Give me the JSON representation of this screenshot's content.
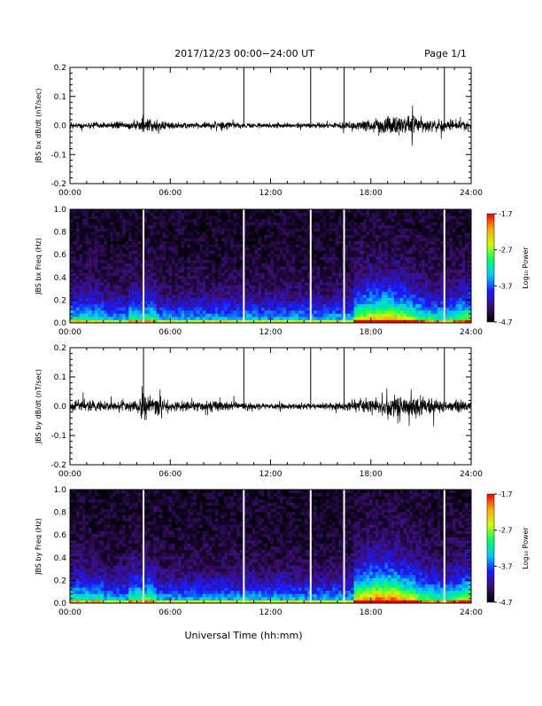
{
  "header": {
    "date_range": "2017/12/23  00:00−24:00 UT",
    "page": "Page 1/1"
  },
  "footer": {
    "xlabel": "Universal Time (hh:mm)"
  },
  "colorbar": {
    "label": "Log₁₀ Power",
    "ticks": [
      "-1.7",
      "-2.7",
      "-3.7",
      "-4.7"
    ],
    "range": [
      -4.7,
      -1.7
    ],
    "colormap": [
      "#000000",
      "#3b0f70",
      "#1a1aff",
      "#00c8ff",
      "#00ff66",
      "#ccff00",
      "#ffaa00",
      "#ff0000"
    ]
  },
  "chart_data": [
    {
      "type": "line",
      "ylabel": "JBS bx dB/dt (nT/sec)",
      "xticks": [
        "00:00",
        "06:00",
        "12:00",
        "18:00",
        "24:00"
      ],
      "yticks": [
        "0.2",
        "0.1",
        "0.0",
        "-0.1",
        "-0.2"
      ],
      "xlim": [
        0,
        24
      ],
      "ylim": [
        -0.2,
        0.2
      ],
      "spikes_hours": [
        4.4,
        10.4,
        14.4,
        16.4,
        22.4
      ],
      "noise_envelope": {
        "hours": [
          0,
          2,
          3.8,
          4.3,
          5,
          6,
          8,
          9,
          10,
          12,
          14,
          16,
          17,
          18,
          19,
          20,
          20.5,
          21,
          22,
          23,
          24
        ],
        "amplitude": [
          0.013,
          0.012,
          0.015,
          0.03,
          0.025,
          0.014,
          0.012,
          0.02,
          0.012,
          0.01,
          0.01,
          0.012,
          0.018,
          0.025,
          0.04,
          0.035,
          0.04,
          0.03,
          0.02,
          0.02,
          0.018
        ]
      },
      "color": "#000000"
    },
    {
      "type": "heatmap",
      "ylabel": "JBS bx Freq (Hz)",
      "xticks": [
        "00:00",
        "06:00",
        "12:00",
        "18:00",
        "24:00"
      ],
      "yticks": [
        "1.0",
        "0.8",
        "0.6",
        "0.4",
        "0.2",
        "0.0"
      ],
      "xlim": [
        0,
        24
      ],
      "ylim": [
        0,
        1
      ],
      "gaps_hours": [
        4.4,
        10.4,
        14.4,
        16.4,
        22.4
      ]
    },
    {
      "type": "line",
      "ylabel": "JBS by dB/dt (nT/sec)",
      "xticks": [
        "00:00",
        "06:00",
        "12:00",
        "18:00",
        "24:00"
      ],
      "yticks": [
        "0.2",
        "0.1",
        "0.0",
        "-0.1",
        "-0.2"
      ],
      "xlim": [
        0,
        24
      ],
      "ylim": [
        -0.2,
        0.2
      ],
      "spikes_hours": [
        4.4,
        10.4,
        14.4,
        16.4,
        22.4
      ],
      "noise_envelope": {
        "hours": [
          0,
          1,
          2,
          3.8,
          4.3,
          5,
          6,
          8,
          9,
          10,
          12,
          14,
          16,
          17,
          18,
          19,
          20,
          20.5,
          21,
          22,
          23,
          24
        ],
        "amplitude": [
          0.02,
          0.025,
          0.018,
          0.02,
          0.06,
          0.04,
          0.02,
          0.018,
          0.025,
          0.016,
          0.012,
          0.012,
          0.015,
          0.022,
          0.03,
          0.05,
          0.04,
          0.045,
          0.035,
          0.025,
          0.025,
          0.022
        ]
      },
      "color": "#000000"
    },
    {
      "type": "heatmap",
      "ylabel": "JBS by Freq (Hz)",
      "xticks": [
        "00:00",
        "06:00",
        "12:00",
        "18:00",
        "24:00"
      ],
      "yticks": [
        "1.0",
        "0.8",
        "0.6",
        "0.4",
        "0.2",
        "0.0"
      ],
      "xlim": [
        0,
        24
      ],
      "ylim": [
        0,
        1
      ],
      "gaps_hours": [
        4.4,
        10.4,
        14.4,
        16.4,
        22.4
      ]
    }
  ]
}
